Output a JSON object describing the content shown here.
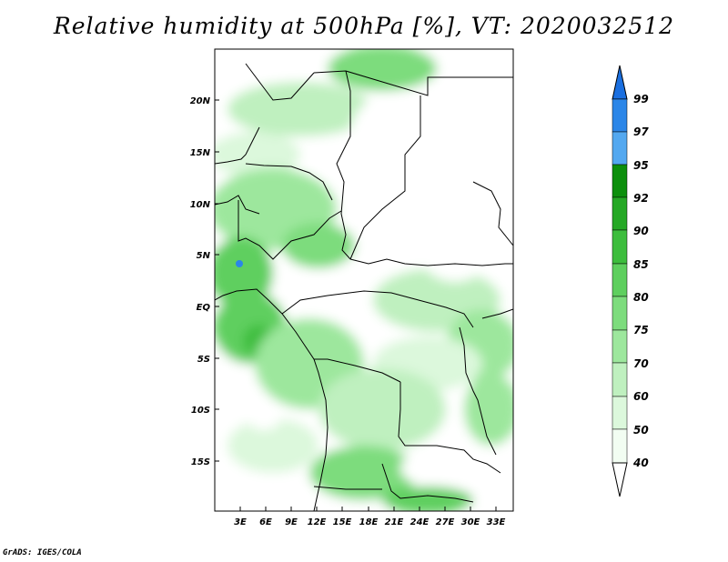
{
  "title": "Relative humidity at 500hPa [%], VT: 2020032512",
  "credit": "GrADS: IGES/COLA",
  "map": {
    "lat_labels": [
      "20N",
      "15N",
      "10N",
      "5N",
      "EQ",
      "5S",
      "10S",
      "15S"
    ],
    "lon_labels": [
      "3E",
      "6E",
      "9E",
      "12E",
      "15E",
      "18E",
      "21E",
      "24E",
      "27E",
      "30E",
      "33E"
    ]
  },
  "colorbar": {
    "levels": [
      "99",
      "97",
      "95",
      "92",
      "90",
      "85",
      "80",
      "75",
      "70",
      "60",
      "50",
      "40"
    ],
    "colors": [
      "#1a6fe0",
      "#2b86e8",
      "#53a8f0",
      "#0c8f0c",
      "#25a825",
      "#3dbd3d",
      "#5ecf5e",
      "#7ddc7d",
      "#9de79d",
      "#bff0bf",
      "#dcf8dc",
      "#f2fdf2"
    ]
  }
}
